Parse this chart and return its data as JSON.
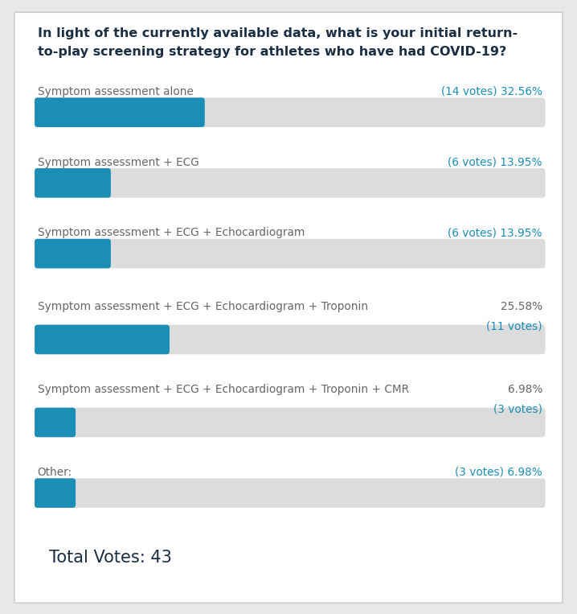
{
  "title_line1": "In light of the currently available data, what is your initial return-",
  "title_line2": "to-play screening strategy for athletes who have had COVID-19?",
  "title_fontsize": 11.5,
  "title_color": "#1a2e44",
  "background_color": "#ffffff",
  "outer_background": "#e8e8e8",
  "bar_color": "#1b8eb7",
  "bar_bg_color": "#dcdcdc",
  "total_votes": 43,
  "categories": [
    "Symptom assessment alone",
    "Symptom assessment + ECG",
    "Symptom assessment + ECG + Echocardiogram",
    "Symptom assessment + ECG + Echocardiogram + Troponin",
    "Symptom assessment + ECG + Echocardiogram + Troponin + CMR",
    "Other:"
  ],
  "percentages": [
    32.56,
    13.95,
    13.95,
    25.58,
    6.98,
    6.98
  ],
  "vote_labels": [
    "(14 votes)",
    "(6 votes)",
    "(6 votes)",
    "(11 votes)",
    "(3 votes)",
    "(3 votes)"
  ],
  "pct_labels": [
    "32.56%",
    "13.95%",
    "13.95%",
    "25.58%",
    "6.98%",
    "6.98%"
  ],
  "pct_colors": [
    "#555555",
    "#555555",
    "#555555",
    "#555555",
    "#555555",
    "#555555"
  ],
  "votes_color": "#1b8eb7",
  "label_same_line": [
    true,
    true,
    true,
    false,
    false,
    true
  ],
  "text_color": "#666666",
  "total_label": "Total Votes: 43",
  "total_fontsize": 15,
  "total_color": "#1a2e44"
}
